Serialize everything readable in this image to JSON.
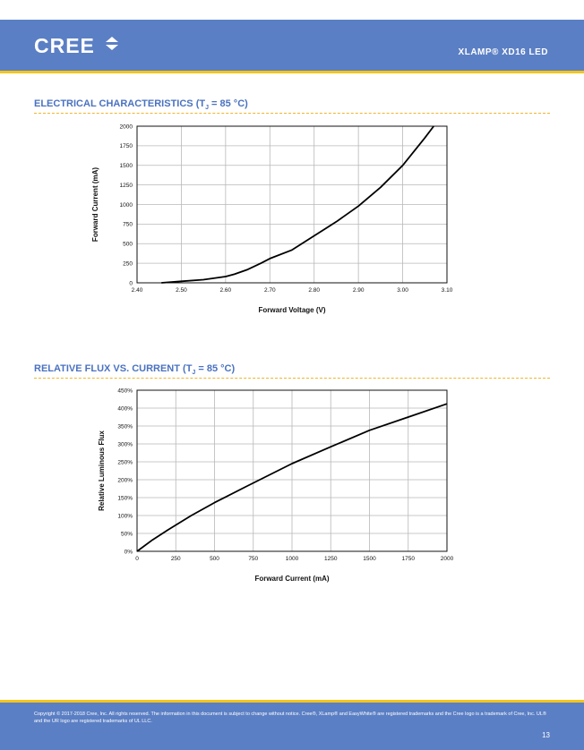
{
  "header": {
    "logo_text": "CREE",
    "doc_title": "XLAMP® XD16 LED",
    "brand_color": "#5b7fc4",
    "accent_color": "#f5c518"
  },
  "sections": [
    {
      "title": "ELECTRICAL CHARACTERISTICS (T",
      "title_sub": "J",
      "title_tail": " = 85 °C)"
    },
    {
      "title": "RELATIVE FLUX VS. CURRENT (T",
      "title_sub": "J",
      "title_tail": " = 85 °C)"
    }
  ],
  "chart_data": [
    {
      "type": "line",
      "xlabel": "Forward Voltage (V)",
      "ylabel": "Forward Current (mA)",
      "xlim": [
        2.4,
        3.1
      ],
      "ylim": [
        0,
        2000
      ],
      "x_ticks": [
        "2.40",
        "2.50",
        "2.60",
        "2.70",
        "2.80",
        "2.90",
        "3.00",
        "3.10"
      ],
      "y_ticks": [
        "0",
        "250",
        "500",
        "750",
        "1000",
        "1250",
        "1500",
        "1750",
        "2000"
      ],
      "grid": true,
      "series": [
        {
          "x": [
            2.455,
            2.5,
            2.55,
            2.6,
            2.62,
            2.65,
            2.68,
            2.7,
            2.75,
            2.8,
            2.85,
            2.9,
            2.95,
            3.0,
            3.05,
            3.07
          ],
          "values": [
            0,
            20,
            40,
            80,
            110,
            170,
            250,
            310,
            420,
            600,
            780,
            980,
            1220,
            1500,
            1850,
            2000
          ]
        }
      ]
    },
    {
      "type": "line",
      "xlabel": "Forward Current (mA)",
      "ylabel": "Relative Luminous Flux",
      "xlim": [
        0,
        2000
      ],
      "ylim": [
        0,
        450
      ],
      "x_ticks": [
        "0",
        "250",
        "500",
        "750",
        "1000",
        "1250",
        "1500",
        "1750",
        "2000"
      ],
      "y_ticks": [
        "0%",
        "50%",
        "100%",
        "150%",
        "200%",
        "250%",
        "300%",
        "350%",
        "400%",
        "450%"
      ],
      "grid": true,
      "series": [
        {
          "x": [
            0,
            100,
            200,
            350,
            500,
            700,
            1000,
            1250,
            1500,
            1750,
            2000
          ],
          "values": [
            0,
            32,
            60,
            100,
            136,
            180,
            245,
            292,
            338,
            375,
            412
          ]
        }
      ]
    }
  ],
  "footer": {
    "copyright": "Copyright © 2017-2018 Cree, Inc. All rights reserved. The information in this document is subject to change without notice. Cree®, XLamp® and EasyWhite® are registered trademarks and the Cree logo is a trademark of Cree, Inc. UL® and the UR logo are registered trademarks of UL LLC.",
    "page_number": "13"
  }
}
